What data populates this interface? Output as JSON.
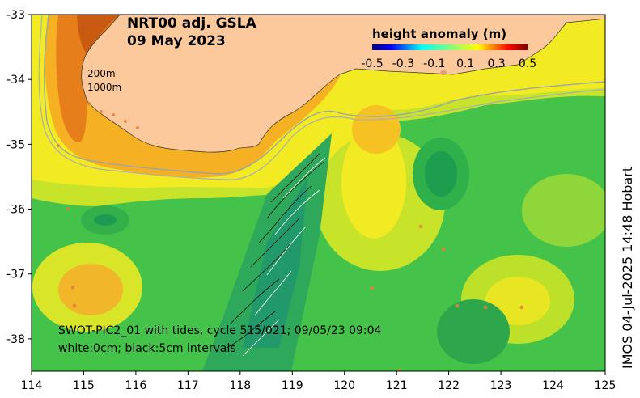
{
  "map": {
    "title": "NRT00 adj. GSLA",
    "date": "09 May 2023",
    "isobath_labels": [
      "200m",
      "1000m"
    ],
    "swath_caption": "SWOT-PIC2_01 with tides, cycle 515/021; 09/05/23 09:04",
    "contour_caption": "white:0cm; black:5cm intervals",
    "credit": "IMOS 04-Jul-2025 14:48 Hobart",
    "lon_range": [
      114,
      125
    ],
    "lat_range": [
      -38.5,
      -33
    ],
    "lon_ticks": [
      "114",
      "115",
      "116",
      "117",
      "118",
      "119",
      "120",
      "121",
      "122",
      "123",
      "124",
      "125"
    ],
    "lat_ticks": [
      "-33",
      "-34",
      "-35",
      "-36",
      "-37",
      "-38"
    ],
    "land_color": "#fbc99b",
    "colorbar": {
      "title": "height anomaly (m)",
      "min": -0.5,
      "max": 0.5,
      "tick_labels": [
        "-0.5",
        "-0.3",
        "-0.1",
        "0.1",
        "0.3",
        "0.5"
      ],
      "colors": [
        "#00007f",
        "#0000ff",
        "#007fff",
        "#00ffff",
        "#7fff7f",
        "#ffff00",
        "#ff7f00",
        "#ff0000",
        "#7f0000"
      ]
    }
  }
}
